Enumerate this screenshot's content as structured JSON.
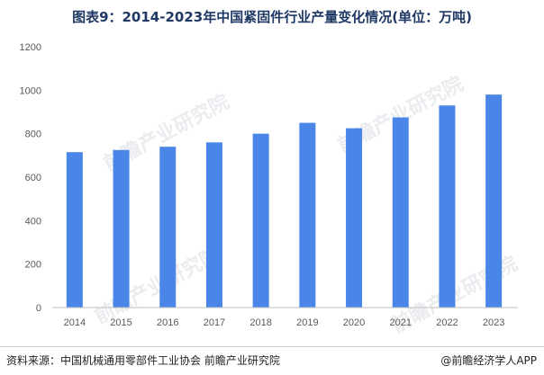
{
  "colors": {
    "bar": "#4a86e8",
    "axis": "#bfbfbf",
    "title": "#1f3864"
  },
  "watermark": {
    "icon": "qianzhan-logo-icon",
    "text": "前瞻产业研究院"
  },
  "chart_data": {
    "type": "bar",
    "title": "图表9：2014-2023年中国紧固件行业产量变化情况(单位：万吨)",
    "xlabel": "",
    "ylabel": "",
    "categories": [
      "2014",
      "2015",
      "2016",
      "2017",
      "2018",
      "2019",
      "2020",
      "2021",
      "2022",
      "2023"
    ],
    "values": [
      715,
      725,
      740,
      760,
      800,
      850,
      825,
      875,
      930,
      980
    ],
    "ylim": [
      0,
      1200
    ],
    "yticks": [
      "0",
      "200",
      "400",
      "600",
      "800",
      "1000",
      "1200"
    ],
    "grid": false,
    "legend": "none"
  },
  "footer": {
    "source": "资料来源：中国机械通用零部件工业协会 前瞻产业研究院",
    "brand": "@前瞻经济学人APP"
  }
}
